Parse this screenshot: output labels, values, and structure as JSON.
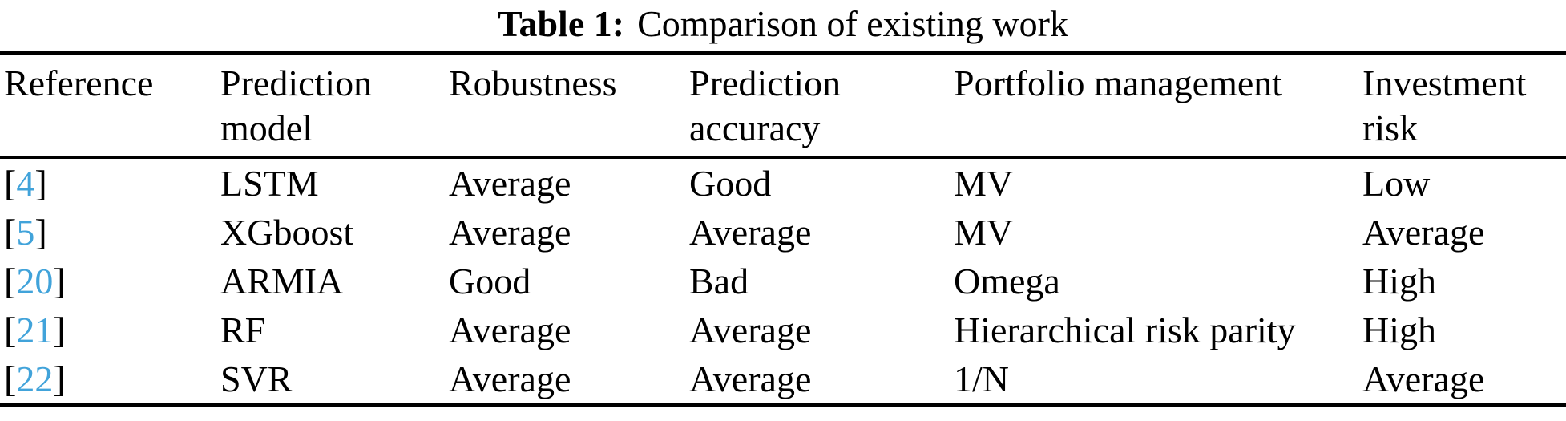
{
  "title": {
    "label": "Table 1:",
    "caption": "Comparison of existing work"
  },
  "colors": {
    "reference_link": "#41a3da",
    "text": "#000000",
    "rule": "#000000"
  },
  "table": {
    "columns": [
      {
        "lines": [
          "Reference"
        ]
      },
      {
        "lines": [
          "Prediction",
          "model"
        ]
      },
      {
        "lines": [
          "Robustness"
        ]
      },
      {
        "lines": [
          "Prediction",
          "accuracy"
        ]
      },
      {
        "lines": [
          "Portfolio management"
        ]
      },
      {
        "lines": [
          "Investment",
          "risk"
        ]
      }
    ],
    "rows": [
      {
        "ref": {
          "open": "[",
          "number": "4",
          "close": "]"
        },
        "prediction_model": "LSTM",
        "robustness": "Average",
        "prediction_accuracy": "Good",
        "portfolio_management": "MV",
        "investment_risk": "Low"
      },
      {
        "ref": {
          "open": "[",
          "number": "5",
          "close": "]"
        },
        "prediction_model": "XGboost",
        "robustness": "Average",
        "prediction_accuracy": "Average",
        "portfolio_management": "MV",
        "investment_risk": "Average"
      },
      {
        "ref": {
          "open": "[",
          "number": "20",
          "close": "]"
        },
        "prediction_model": "ARMIA",
        "robustness": "Good",
        "prediction_accuracy": "Bad",
        "portfolio_management": "Omega",
        "investment_risk": "High"
      },
      {
        "ref": {
          "open": "[",
          "number": "21",
          "close": "]"
        },
        "prediction_model": "RF",
        "robustness": "Average",
        "prediction_accuracy": "Average",
        "portfolio_management": "Hierarchical risk parity",
        "investment_risk": "High"
      },
      {
        "ref": {
          "open": "[",
          "number": "22",
          "close": "]"
        },
        "prediction_model": "SVR",
        "robustness": "Average",
        "prediction_accuracy": "Average",
        "portfolio_management": "1/N",
        "investment_risk": "Average"
      }
    ]
  }
}
